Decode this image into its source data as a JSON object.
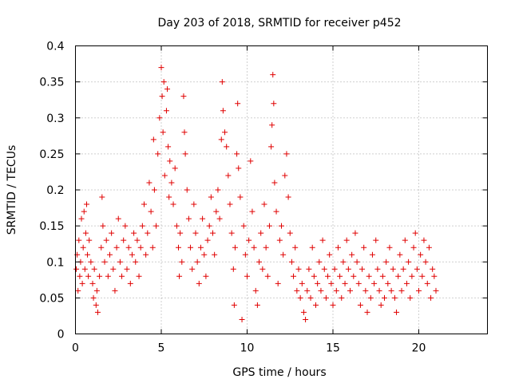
{
  "chart_data": {
    "type": "scatter",
    "title": "Day 203 of 2018, SRMTID for receiver p452",
    "xlabel": "GPS time / hours",
    "ylabel": "SRMTID / TECUs",
    "xlim": [
      0,
      24
    ],
    "ylim": [
      0,
      0.4
    ],
    "x_ticks": [
      0,
      5,
      10,
      15,
      20
    ],
    "x_tick_labels": [
      "0",
      "5",
      "10",
      "15",
      "20"
    ],
    "y_ticks": [
      0,
      0.05,
      0.1,
      0.15,
      0.2,
      0.25,
      0.3,
      0.35,
      0.4
    ],
    "y_tick_labels": [
      "0",
      "0.05",
      "0.1",
      "0.15",
      "0.2",
      "0.25",
      "0.3",
      "0.35",
      "0.4"
    ],
    "grid": true,
    "marker": "plus",
    "color": "#e00000",
    "series": [
      {
        "name": "SRMTID",
        "points": [
          [
            0.05,
            0.09
          ],
          [
            0.1,
            0.11
          ],
          [
            0.15,
            0.06
          ],
          [
            0.2,
            0.13
          ],
          [
            0.25,
            0.08
          ],
          [
            0.3,
            0.1
          ],
          [
            0.35,
            0.16
          ],
          [
            0.4,
            0.07
          ],
          [
            0.45,
            0.12
          ],
          [
            0.5,
            0.17
          ],
          [
            0.55,
            0.09
          ],
          [
            0.6,
            0.14
          ],
          [
            0.65,
            0.18
          ],
          [
            0.7,
            0.11
          ],
          [
            0.75,
            0.08
          ],
          [
            0.8,
            0.13
          ],
          [
            0.9,
            0.1
          ],
          [
            1.0,
            0.07
          ],
          [
            1.05,
            0.05
          ],
          [
            1.1,
            0.09
          ],
          [
            1.2,
            0.04
          ],
          [
            1.25,
            0.06
          ],
          [
            1.3,
            0.03
          ],
          [
            1.4,
            0.08
          ],
          [
            1.5,
            0.12
          ],
          [
            1.55,
            0.19
          ],
          [
            1.6,
            0.15
          ],
          [
            1.7,
            0.1
          ],
          [
            1.8,
            0.13
          ],
          [
            1.9,
            0.08
          ],
          [
            2.0,
            0.11
          ],
          [
            2.1,
            0.14
          ],
          [
            2.2,
            0.09
          ],
          [
            2.3,
            0.06
          ],
          [
            2.4,
            0.12
          ],
          [
            2.5,
            0.16
          ],
          [
            2.6,
            0.1
          ],
          [
            2.7,
            0.08
          ],
          [
            2.8,
            0.13
          ],
          [
            2.9,
            0.15
          ],
          [
            3.0,
            0.09
          ],
          [
            3.1,
            0.12
          ],
          [
            3.2,
            0.07
          ],
          [
            3.3,
            0.11
          ],
          [
            3.4,
            0.14
          ],
          [
            3.5,
            0.1
          ],
          [
            3.6,
            0.13
          ],
          [
            3.7,
            0.08
          ],
          [
            3.8,
            0.12
          ],
          [
            3.9,
            0.15
          ],
          [
            4.0,
            0.18
          ],
          [
            4.1,
            0.11
          ],
          [
            4.2,
            0.14
          ],
          [
            4.3,
            0.21
          ],
          [
            4.4,
            0.17
          ],
          [
            4.5,
            0.12
          ],
          [
            4.55,
            0.27
          ],
          [
            4.6,
            0.2
          ],
          [
            4.7,
            0.15
          ],
          [
            4.8,
            0.25
          ],
          [
            4.9,
            0.3
          ],
          [
            5.0,
            0.37
          ],
          [
            5.05,
            0.33
          ],
          [
            5.1,
            0.28
          ],
          [
            5.15,
            0.35
          ],
          [
            5.2,
            0.22
          ],
          [
            5.3,
            0.31
          ],
          [
            5.35,
            0.34
          ],
          [
            5.4,
            0.26
          ],
          [
            5.45,
            0.19
          ],
          [
            5.5,
            0.24
          ],
          [
            5.6,
            0.21
          ],
          [
            5.7,
            0.18
          ],
          [
            5.8,
            0.23
          ],
          [
            5.9,
            0.15
          ],
          [
            6.0,
            0.12
          ],
          [
            6.05,
            0.08
          ],
          [
            6.1,
            0.14
          ],
          [
            6.2,
            0.1
          ],
          [
            6.3,
            0.33
          ],
          [
            6.35,
            0.28
          ],
          [
            6.4,
            0.25
          ],
          [
            6.5,
            0.2
          ],
          [
            6.6,
            0.16
          ],
          [
            6.7,
            0.12
          ],
          [
            6.8,
            0.09
          ],
          [
            6.9,
            0.18
          ],
          [
            7.0,
            0.14
          ],
          [
            7.1,
            0.1
          ],
          [
            7.2,
            0.07
          ],
          [
            7.3,
            0.12
          ],
          [
            7.4,
            0.16
          ],
          [
            7.5,
            0.11
          ],
          [
            7.6,
            0.08
          ],
          [
            7.7,
            0.13
          ],
          [
            7.8,
            0.15
          ],
          [
            7.9,
            0.19
          ],
          [
            8.0,
            0.14
          ],
          [
            8.1,
            0.11
          ],
          [
            8.2,
            0.17
          ],
          [
            8.3,
            0.2
          ],
          [
            8.4,
            0.16
          ],
          [
            8.5,
            0.27
          ],
          [
            8.55,
            0.35
          ],
          [
            8.6,
            0.31
          ],
          [
            8.7,
            0.28
          ],
          [
            8.8,
            0.26
          ],
          [
            8.9,
            0.22
          ],
          [
            9.0,
            0.18
          ],
          [
            9.1,
            0.14
          ],
          [
            9.2,
            0.09
          ],
          [
            9.25,
            0.04
          ],
          [
            9.3,
            0.12
          ],
          [
            9.4,
            0.25
          ],
          [
            9.45,
            0.32
          ],
          [
            9.5,
            0.23
          ],
          [
            9.6,
            0.19
          ],
          [
            9.7,
            0.02
          ],
          [
            9.8,
            0.15
          ],
          [
            9.9,
            0.11
          ],
          [
            10.0,
            0.08
          ],
          [
            10.1,
            0.13
          ],
          [
            10.2,
            0.24
          ],
          [
            10.3,
            0.17
          ],
          [
            10.4,
            0.12
          ],
          [
            10.5,
            0.06
          ],
          [
            10.6,
            0.04
          ],
          [
            10.7,
            0.1
          ],
          [
            10.8,
            0.14
          ],
          [
            10.9,
            0.09
          ],
          [
            11.0,
            0.18
          ],
          [
            11.1,
            0.12
          ],
          [
            11.2,
            0.08
          ],
          [
            11.3,
            0.15
          ],
          [
            11.4,
            0.26
          ],
          [
            11.45,
            0.29
          ],
          [
            11.5,
            0.36
          ],
          [
            11.55,
            0.32
          ],
          [
            11.6,
            0.21
          ],
          [
            11.7,
            0.17
          ],
          [
            11.8,
            0.07
          ],
          [
            11.9,
            0.13
          ],
          [
            12.0,
            0.15
          ],
          [
            12.1,
            0.11
          ],
          [
            12.2,
            0.22
          ],
          [
            12.3,
            0.25
          ],
          [
            12.4,
            0.19
          ],
          [
            12.5,
            0.14
          ],
          [
            12.6,
            0.1
          ],
          [
            12.7,
            0.08
          ],
          [
            12.8,
            0.12
          ],
          [
            12.9,
            0.06
          ],
          [
            13.0,
            0.09
          ],
          [
            13.1,
            0.05
          ],
          [
            13.2,
            0.07
          ],
          [
            13.3,
            0.03
          ],
          [
            13.4,
            0.02
          ],
          [
            13.5,
            0.06
          ],
          [
            13.6,
            0.09
          ],
          [
            13.7,
            0.05
          ],
          [
            13.8,
            0.12
          ],
          [
            13.9,
            0.08
          ],
          [
            14.0,
            0.04
          ],
          [
            14.1,
            0.07
          ],
          [
            14.2,
            0.1
          ],
          [
            14.3,
            0.06
          ],
          [
            14.4,
            0.13
          ],
          [
            14.5,
            0.09
          ],
          [
            14.6,
            0.05
          ],
          [
            14.7,
            0.08
          ],
          [
            14.8,
            0.11
          ],
          [
            14.9,
            0.07
          ],
          [
            15.0,
            0.04
          ],
          [
            15.1,
            0.09
          ],
          [
            15.2,
            0.06
          ],
          [
            15.3,
            0.12
          ],
          [
            15.4,
            0.08
          ],
          [
            15.5,
            0.05
          ],
          [
            15.6,
            0.1
          ],
          [
            15.7,
            0.07
          ],
          [
            15.8,
            0.13
          ],
          [
            15.9,
            0.09
          ],
          [
            16.0,
            0.06
          ],
          [
            16.1,
            0.11
          ],
          [
            16.2,
            0.08
          ],
          [
            16.3,
            0.14
          ],
          [
            16.4,
            0.1
          ],
          [
            16.5,
            0.07
          ],
          [
            16.6,
            0.04
          ],
          [
            16.7,
            0.09
          ],
          [
            16.8,
            0.12
          ],
          [
            16.9,
            0.06
          ],
          [
            17.0,
            0.03
          ],
          [
            17.1,
            0.08
          ],
          [
            17.2,
            0.05
          ],
          [
            17.3,
            0.11
          ],
          [
            17.4,
            0.07
          ],
          [
            17.5,
            0.13
          ],
          [
            17.6,
            0.09
          ],
          [
            17.7,
            0.06
          ],
          [
            17.8,
            0.04
          ],
          [
            17.9,
            0.08
          ],
          [
            18.0,
            0.05
          ],
          [
            18.1,
            0.1
          ],
          [
            18.2,
            0.07
          ],
          [
            18.3,
            0.12
          ],
          [
            18.4,
            0.06
          ],
          [
            18.5,
            0.09
          ],
          [
            18.6,
            0.05
          ],
          [
            18.7,
            0.03
          ],
          [
            18.8,
            0.08
          ],
          [
            18.9,
            0.11
          ],
          [
            19.0,
            0.06
          ],
          [
            19.1,
            0.09
          ],
          [
            19.2,
            0.13
          ],
          [
            19.3,
            0.07
          ],
          [
            19.4,
            0.1
          ],
          [
            19.5,
            0.05
          ],
          [
            19.6,
            0.08
          ],
          [
            19.7,
            0.12
          ],
          [
            19.8,
            0.14
          ],
          [
            19.9,
            0.09
          ],
          [
            20.0,
            0.06
          ],
          [
            20.1,
            0.11
          ],
          [
            20.2,
            0.08
          ],
          [
            20.3,
            0.13
          ],
          [
            20.4,
            0.1
          ],
          [
            20.5,
            0.07
          ],
          [
            20.6,
            0.12
          ],
          [
            20.7,
            0.05
          ],
          [
            20.8,
            0.09
          ],
          [
            20.9,
            0.08
          ],
          [
            21.0,
            0.06
          ]
        ]
      }
    ]
  }
}
